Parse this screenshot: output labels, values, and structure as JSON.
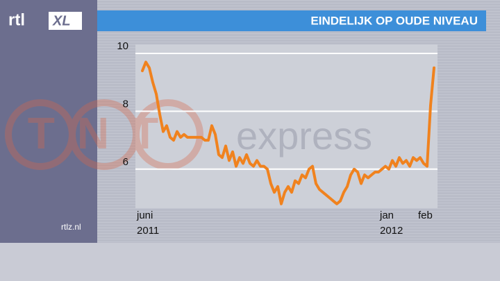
{
  "chart_data": {
    "type": "line",
    "title": "EINDELIJK OP OUDE NIVEAU",
    "values": [
      9.4,
      9.7,
      9.5,
      9.0,
      8.6,
      7.9,
      7.3,
      7.5,
      7.1,
      7.0,
      7.3,
      7.1,
      7.2,
      7.1,
      7.1,
      7.1,
      7.1,
      7.1,
      7.0,
      7.0,
      7.5,
      7.2,
      6.5,
      6.4,
      6.8,
      6.3,
      6.6,
      6.1,
      6.4,
      6.2,
      6.5,
      6.2,
      6.1,
      6.3,
      6.1,
      6.1,
      6.0,
      5.5,
      5.2,
      5.4,
      4.8,
      5.2,
      5.4,
      5.2,
      5.6,
      5.5,
      5.8,
      5.7,
      6.0,
      6.1,
      5.5,
      5.3,
      5.2,
      5.1,
      5.0,
      4.9,
      4.8,
      4.9,
      5.2,
      5.4,
      5.8,
      6.0,
      5.9,
      5.5,
      5.8,
      5.7,
      5.8,
      5.9,
      5.9,
      6.0,
      6.1,
      6.0,
      6.3,
      6.1,
      6.4,
      6.2,
      6.3,
      6.1,
      6.4,
      6.3,
      6.4,
      6.2,
      6.1,
      8.2,
      9.5
    ],
    "categories": [
      "juni 2011",
      null,
      null,
      null,
      null,
      null,
      null,
      null,
      null,
      null,
      null,
      null,
      null,
      null,
      null,
      null,
      null,
      null,
      null,
      null,
      null,
      null,
      null,
      null,
      null,
      null,
      null,
      null,
      null,
      null,
      null,
      null,
      null,
      null,
      null,
      null,
      null,
      null,
      null,
      null,
      null,
      null,
      null,
      null,
      null,
      null,
      null,
      null,
      null,
      null,
      null,
      null,
      null,
      null,
      null,
      null,
      null,
      null,
      null,
      null,
      null,
      null,
      null,
      null,
      null,
      null,
      null,
      null,
      null,
      null,
      "jan 2012",
      null,
      null,
      null,
      null,
      null,
      null,
      null,
      null,
      null,
      null,
      "feb",
      null,
      null,
      null
    ],
    "color": "#f0821e",
    "ylim": [
      4.7,
      10
    ],
    "yticks": [
      6,
      8,
      10
    ],
    "grid": true
  },
  "branding": {
    "logo_left": "rtl",
    "logo_right": "XL",
    "website": "rtlz.nl",
    "watermark_logo": "TNT",
    "watermark_text": "express"
  }
}
